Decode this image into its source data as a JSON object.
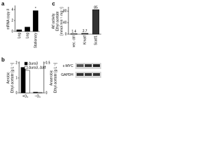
{
  "chart_data": [
    {
      "type": "bar",
      "panel_label": "a",
      "ylabel": [
        "mRNA copy #"
      ],
      "categories": [
        "Log",
        "Log",
        "Stationary"
      ],
      "values": [
        0.3,
        0.8,
        3.8
      ],
      "color": "#000000",
      "ylim": [
        0,
        4.5
      ],
      "yticks": [
        0,
        2,
        4
      ],
      "annotation": "*"
    },
    {
      "type": "bar",
      "panel_label": "b",
      "ylabel": [
        "Aerobic",
        "Ethyl acetate [g L⁻¹]"
      ],
      "y2label": [
        "Anaerobic",
        "Ethyl acetate [g L⁻¹]"
      ],
      "categories": [
        "+O₂",
        "−O₂"
      ],
      "series": [
        {
          "name": "Δura3",
          "color": "#000000",
          "values": [
            1.7,
            0.05
          ]
        },
        {
          "name": "Δura3, Δatf",
          "color": "#ffffff",
          "values": [
            1.5,
            0.04
          ]
        }
      ],
      "ylim": [
        0,
        2
      ],
      "yticks": [
        0,
        1,
        2
      ],
      "y2lim": [
        0,
        0.5
      ],
      "y2ticks": [
        0,
        0.5
      ]
    },
    {
      "type": "bar",
      "panel_label": "c",
      "ylabel": [
        "Atf activity",
        "Ethyl acetate",
        "[mmol min⁻¹ mg⁻¹]"
      ],
      "categories": [
        "vec. ctrl",
        "Kmatf",
        "Scatf1"
      ],
      "values": [
        1.4,
        2.7,
        85
      ],
      "color": "#333333",
      "ylim": [
        0,
        90
      ],
      "yticks": [
        0,
        40,
        80
      ],
      "blot_labels": [
        "c-MYC",
        "GAPDH"
      ]
    }
  ]
}
